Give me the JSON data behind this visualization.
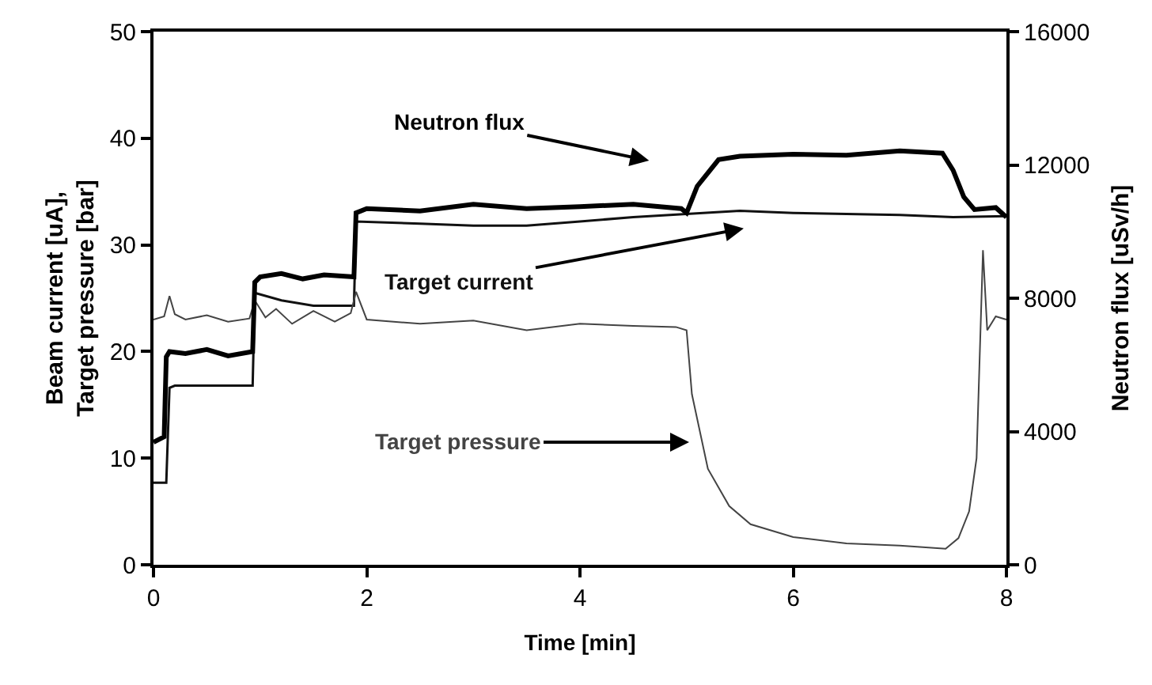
{
  "chart_data": {
    "type": "line",
    "xlabel": "Time [min]",
    "ylabel": "Beam current [uA],\nTarget pressure [bar]",
    "y2label": "Neutron flux [uSv/h]",
    "xlim": [
      0,
      8
    ],
    "xticks": [
      0,
      2,
      4,
      6,
      8
    ],
    "ylim": [
      0,
      50
    ],
    "yticks": [
      0,
      10,
      20,
      30,
      40,
      50
    ],
    "y2lim": [
      0,
      16000
    ],
    "y2ticks": [
      0,
      4000,
      8000,
      12000,
      16000
    ],
    "legend": false,
    "marker": "none",
    "line_style": "solid",
    "series": [
      {
        "name": "Neutron flux",
        "color": "#000000",
        "axis": "y2",
        "x": [
          0,
          0.1,
          0.12,
          0.15,
          0.3,
          0.5,
          0.7,
          0.93,
          0.95,
          1.0,
          1.2,
          1.4,
          1.6,
          1.88,
          1.9,
          2.0,
          2.5,
          3.0,
          3.5,
          4.0,
          4.5,
          4.95,
          5.0,
          5.1,
          5.3,
          5.5,
          6.0,
          6.5,
          7.0,
          7.4,
          7.5,
          7.6,
          7.7,
          7.9,
          8.0
        ],
        "values": [
          3680,
          3840,
          6240,
          6400,
          6340,
          6460,
          6270,
          6400,
          8480,
          8640,
          8740,
          8580,
          8700,
          8640,
          10560,
          10690,
          10620,
          10820,
          10690,
          10750,
          10820,
          10690,
          10560,
          11360,
          12160,
          12260,
          12320,
          12290,
          12420,
          12350,
          11840,
          11040,
          10660,
          10720,
          10430
        ]
      },
      {
        "name": "Target current",
        "color": "#111111",
        "x": [
          0,
          0.12,
          0.15,
          0.2,
          0.93,
          0.95,
          1.2,
          1.5,
          1.88,
          1.9,
          2.5,
          3.0,
          3.5,
          4.0,
          4.5,
          5.0,
          5.5,
          6.0,
          6.5,
          7.0,
          7.5,
          8.0
        ],
        "values": [
          7.7,
          7.7,
          16.6,
          16.8,
          16.8,
          25.5,
          24.8,
          24.3,
          24.3,
          32.2,
          32,
          31.8,
          31.8,
          32.2,
          32.6,
          32.9,
          33.2,
          33,
          32.9,
          32.8,
          32.6,
          32.7
        ]
      },
      {
        "name": "Target pressure",
        "color": "#444444",
        "x": [
          0,
          0.1,
          0.15,
          0.2,
          0.3,
          0.5,
          0.7,
          0.9,
          0.95,
          1.05,
          1.15,
          1.3,
          1.5,
          1.7,
          1.85,
          1.9,
          2.0,
          2.5,
          3.0,
          3.5,
          4.0,
          4.5,
          4.9,
          5.0,
          5.05,
          5.2,
          5.4,
          5.6,
          6.0,
          6.5,
          7.0,
          7.43,
          7.55,
          7.65,
          7.72,
          7.78,
          7.82,
          7.9,
          8.0
        ],
        "values": [
          23,
          23.3,
          25.2,
          23.5,
          23,
          23.4,
          22.8,
          23.1,
          24.8,
          23.2,
          24,
          22.6,
          23.8,
          22.8,
          23.6,
          25.6,
          23,
          22.6,
          22.9,
          22,
          22.6,
          22.4,
          22.3,
          22,
          16,
          9,
          5.5,
          3.8,
          2.6,
          2,
          1.8,
          1.5,
          2.5,
          5,
          10,
          29.5,
          22,
          23.3,
          23
        ]
      }
    ]
  }
}
